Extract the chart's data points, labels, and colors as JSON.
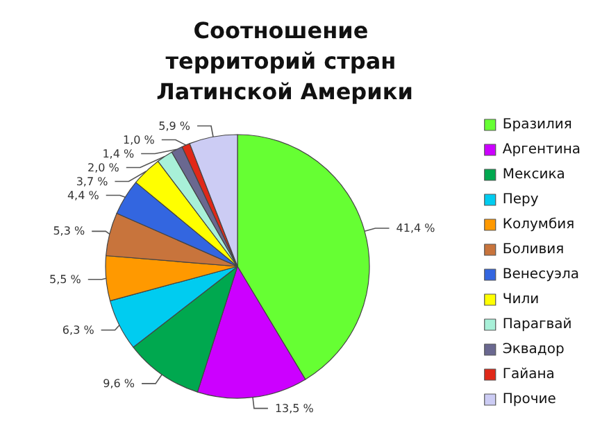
{
  "chart_data": {
    "type": "pie",
    "title": "Соотношение территорий стран Латинской Америки",
    "categories": [
      "Бразилия",
      "Аргентина",
      "Мексика",
      "Перу",
      "Колумбия",
      "Боливия",
      "Венесуэла",
      "Чили",
      "Парагвай",
      "Эквадор",
      "Гайана",
      "Прочие"
    ],
    "values": [
      41.4,
      13.5,
      9.6,
      6.3,
      5.5,
      5.3,
      4.4,
      3.7,
      2.0,
      1.4,
      1.0,
      5.9
    ],
    "value_labels": [
      "41,4 %",
      "13,5 %",
      "9,6 %",
      "6,3 %",
      "5,5 %",
      "5,3 %",
      "4,4 %",
      "3,7 %",
      "2,0 %",
      "1,4 %",
      "1,0 %",
      "5,9 %"
    ],
    "colors": [
      "#66ff33",
      "#cc00ff",
      "#00a84f",
      "#00ccf0",
      "#ff9900",
      "#c8743c",
      "#3366e0",
      "#ffff00",
      "#a8f0d8",
      "#6a6890",
      "#e02818",
      "#ccccf4"
    ],
    "legend": "right"
  }
}
